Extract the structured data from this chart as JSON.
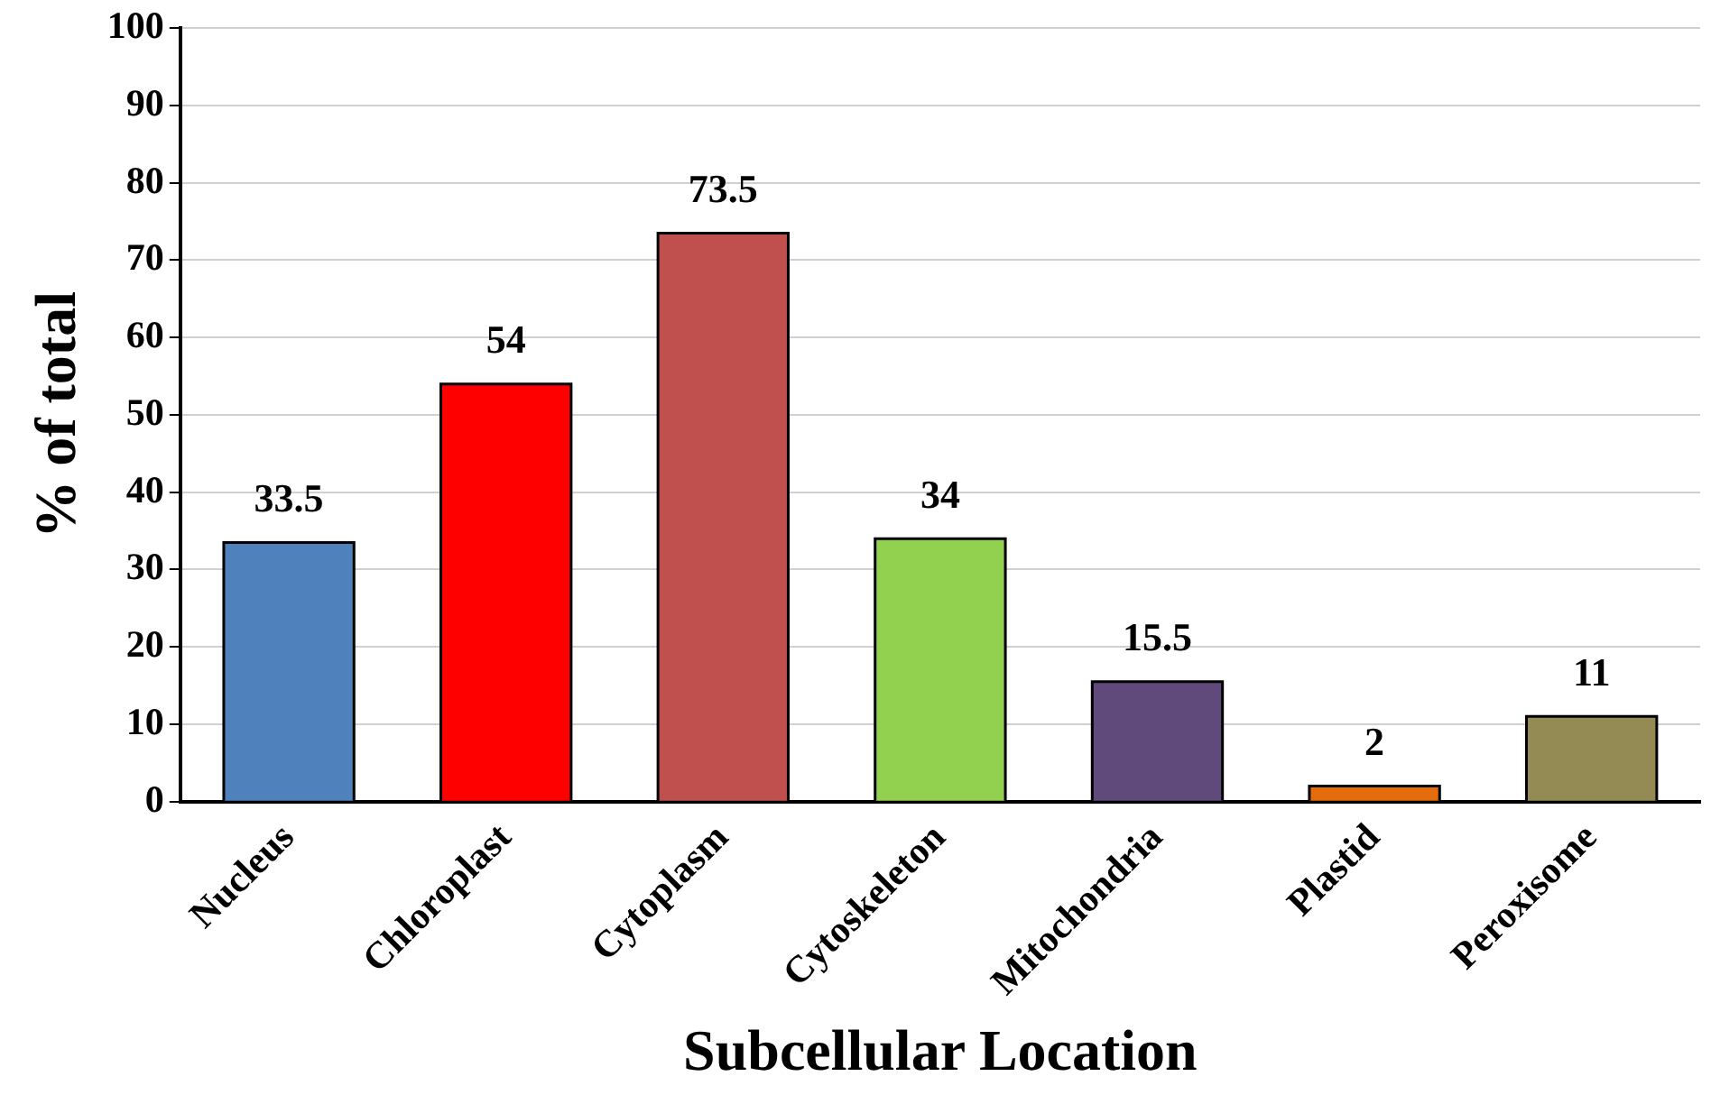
{
  "chart_data": {
    "type": "bar",
    "xlabel": "Subcellular Location",
    "ylabel": "% of total",
    "categories": [
      "Nucleus",
      "Chloroplast",
      "Cytoplasm",
      "Cytoskeleton",
      "Mitochondria",
      "Plastid",
      "Peroxisome"
    ],
    "values": [
      33.5,
      54,
      73.5,
      34,
      15.5,
      2,
      11
    ],
    "colors": [
      "#4f81bd",
      "#ff0000",
      "#c0504d",
      "#92d050",
      "#604a7b",
      "#e46c0a",
      "#948a54"
    ],
    "ylim": [
      0,
      100
    ],
    "yticks": [
      0,
      10,
      20,
      30,
      40,
      50,
      60,
      70,
      80,
      90,
      100
    ],
    "grid": "y",
    "data_labels": true
  }
}
